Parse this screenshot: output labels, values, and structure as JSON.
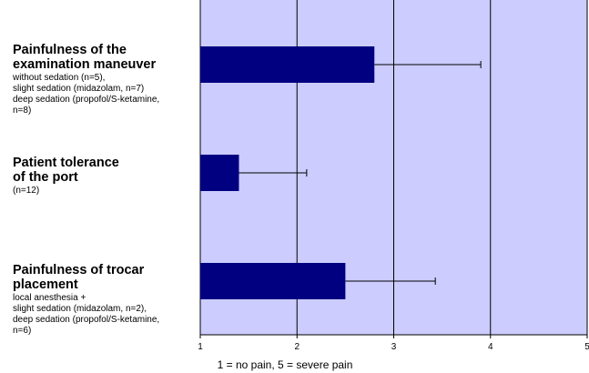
{
  "chart_data": {
    "type": "bar",
    "orientation": "horizontal",
    "categories": [
      {
        "title": "Painfulness of the\nexamination maneuver",
        "subtitle": "without sedation (n=5),\nslight sedation (midazolam, n=7)\ndeep sedation (propofol/S-ketamine,\nn=8)",
        "value": 2.8,
        "error_upper": 3.9
      },
      {
        "title": "Patient tolerance\nof the port",
        "subtitle": "(n=12)",
        "value": 1.4,
        "error_upper": 2.1
      },
      {
        "title": "Painfulness of trocar\nplacement",
        "subtitle": "local anesthesia +\nslight sedation (midazolam, n=2),\ndeep sedation (propofol/S-ketamine,\nn=6)",
        "value": 2.5,
        "error_upper": 3.43
      }
    ],
    "xlim": [
      1,
      5
    ],
    "xticks": [
      "1",
      "2",
      "3",
      "4",
      "5"
    ],
    "xlabel": "1 = no pain, 5 = severe pain",
    "grid": true,
    "legend": "none",
    "colors": {
      "plot_background": "#ccccff",
      "bar": "#000080",
      "grid": "#000000"
    }
  }
}
